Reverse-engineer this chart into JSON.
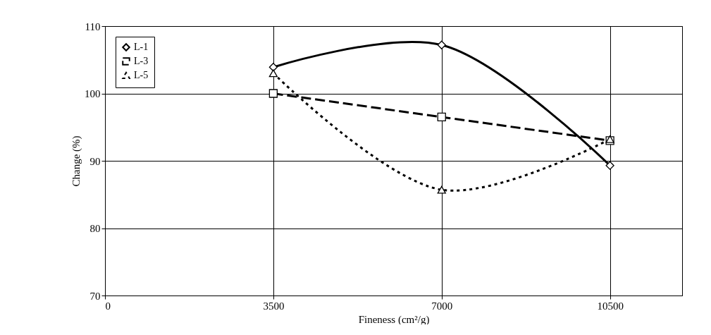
{
  "chart_data": {
    "type": "line",
    "xlabel": "Fineness (cm²/g)",
    "ylabel": "Change (%)",
    "x": [
      3500,
      7000,
      10500
    ],
    "series": [
      {
        "name": "L-1",
        "color": "#000000",
        "values": [
          103.9,
          107.2,
          89.3
        ],
        "marker": "diamond",
        "line_style": "solid"
      },
      {
        "name": "L-3",
        "color": "#000000",
        "values": [
          100,
          96.5,
          93
        ],
        "marker": "square",
        "line_style": "dashed"
      },
      {
        "name": "L-5",
        "color": "#000000",
        "values": [
          103.0,
          85.7,
          93.2
        ],
        "marker": "triangle",
        "line_style": "dotted"
      }
    ],
    "xlim": [
      0,
      12000
    ],
    "xticks": [
      0,
      3500,
      7000,
      10500
    ],
    "ylim": [
      70,
      110
    ],
    "yticks": [
      70,
      80,
      90,
      100,
      110
    ],
    "grid": true,
    "legend": "top left"
  }
}
